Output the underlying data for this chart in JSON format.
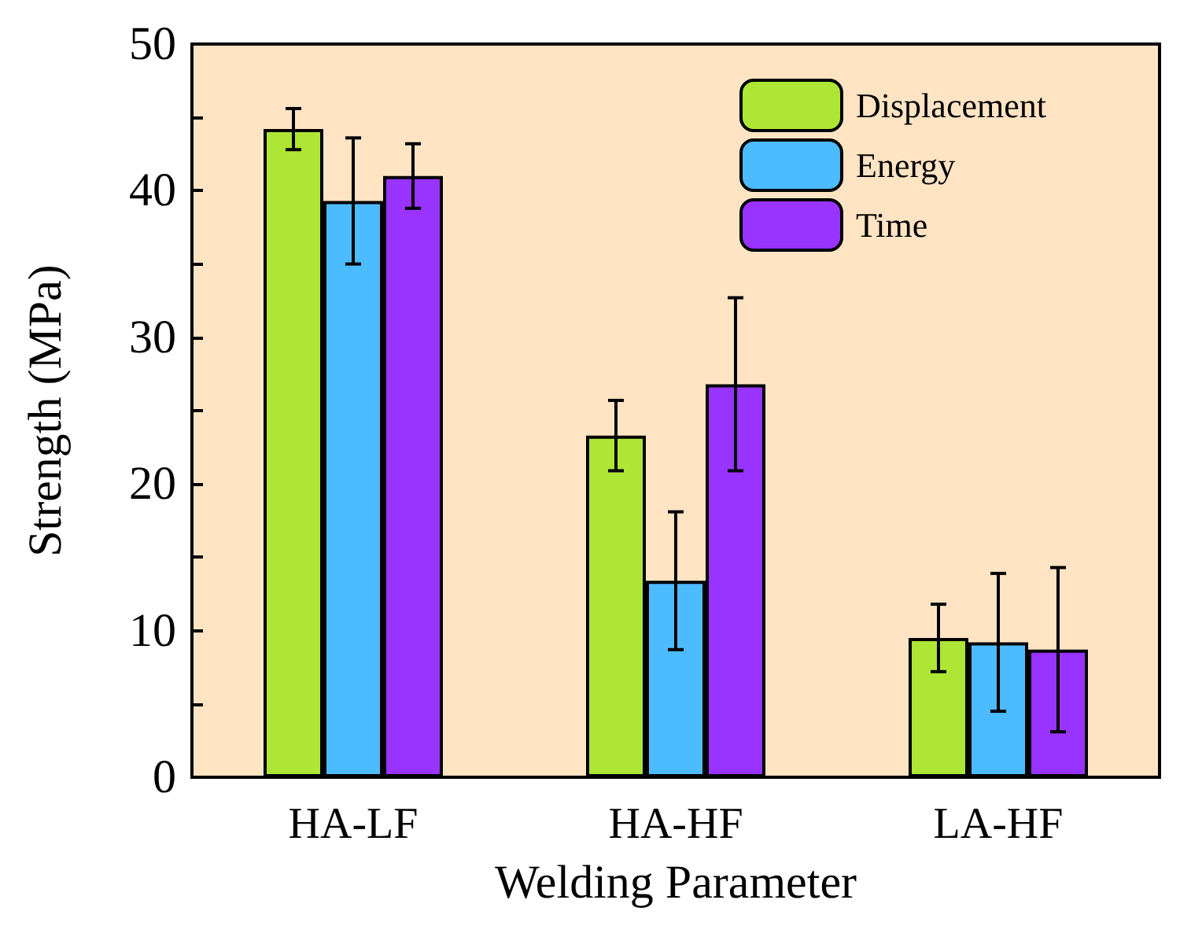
{
  "chart_data": {
    "type": "bar",
    "xlabel": "Welding Parameter",
    "ylabel": "Strength (MPa)",
    "categories": [
      "HA-LF",
      "HA-HF",
      "LA-HF"
    ],
    "series": [
      {
        "name": "Displacement",
        "color": "#ade635",
        "values": [
          44.2,
          23.3,
          9.5
        ],
        "errors": [
          1.4,
          2.4,
          2.3
        ]
      },
      {
        "name": "Energy",
        "color": "#4dbbff",
        "values": [
          39.3,
          13.4,
          9.2
        ],
        "errors": [
          4.3,
          4.7,
          4.7
        ]
      },
      {
        "name": "Time",
        "color": "#9933ff",
        "values": [
          41.0,
          26.8,
          8.7
        ],
        "errors": [
          2.2,
          5.9,
          5.6
        ]
      }
    ],
    "ylim": [
      0,
      50
    ],
    "yticks": [
      0,
      {
        "value": 5,
        "label": null
      },
      10,
      {
        "value": 15,
        "label": null
      },
      20,
      {
        "value": 25,
        "label": null
      },
      30,
      {
        "value": 35,
        "label": null
      },
      40,
      {
        "value": 45,
        "label": null
      },
      50
    ],
    "legend": "top right",
    "grid": false
  }
}
